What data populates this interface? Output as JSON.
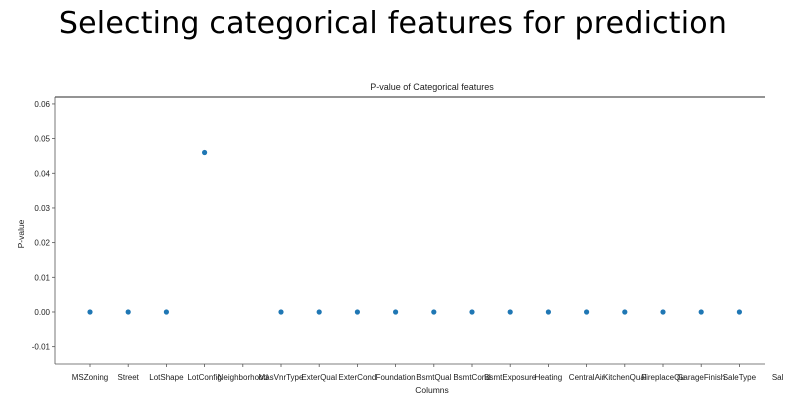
{
  "slide": {
    "title": "Selecting categorical features for prediction"
  },
  "chart_data": {
    "type": "scatter",
    "title": "P-value of Categorical features",
    "xlabel": "Columns",
    "ylabel": "P-value",
    "categories": [
      "MSZoning",
      "Street",
      "LotShape",
      "LotConfig",
      "Neighborhood",
      "MasVnrType",
      "ExterQual",
      "ExterCond",
      "Foundation",
      "BsmtQual",
      "BsmtCond",
      "BsmtExposure",
      "Heating",
      "CentralAir",
      "KitchenQual",
      "FireplaceQu",
      "GarageFinish",
      "SaleType",
      "SaleCondition"
    ],
    "category_tick_labels": [
      "MSZoning",
      "Street",
      "LotShape",
      "LotConfig",
      "Neighborhood",
      "MasVnrType",
      "ExterQual",
      "ExterCond",
      "Foundation",
      "BsmtQual",
      "BsmtCond",
      "BsmtExposure",
      "Heating",
      "CentralAir",
      "KitchenQual",
      "FireplaceQu",
      "GarageFinish",
      "SaleType",
      "Sal"
    ],
    "values": [
      0.0,
      0.0,
      0.0,
      0.046,
      null,
      0.0,
      0.0,
      0.0,
      0.0,
      0.0,
      0.0,
      0.0,
      0.0,
      0.0,
      0.0,
      0.0,
      0.0,
      0.0,
      null
    ],
    "ylim": [
      -0.015,
      0.062
    ],
    "yticks": [
      -0.01,
      0.0,
      0.01,
      0.02,
      0.03,
      0.04,
      0.05,
      0.06
    ],
    "ytick_labels": [
      "-0.01",
      "0.00",
      "0.01",
      "0.02",
      "0.03",
      "0.04",
      "0.05",
      "0.06"
    ],
    "grid": false,
    "marker_color": "#1f77b4"
  }
}
